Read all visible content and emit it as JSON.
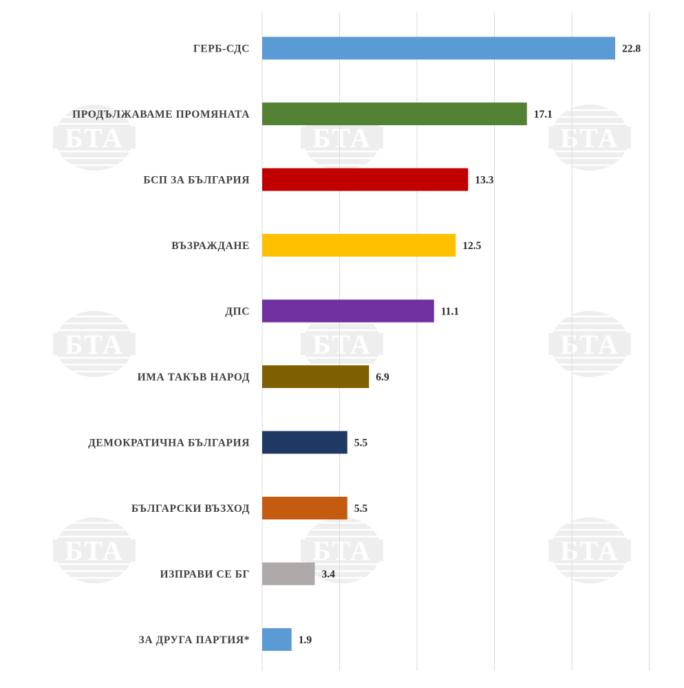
{
  "watermark": {
    "text": "БТА"
  },
  "chart_data": {
    "type": "bar",
    "orientation": "horizontal",
    "title": "",
    "xlabel": "",
    "ylabel": "",
    "xlim": [
      0,
      25
    ],
    "grid": true,
    "categories": [
      "ГЕРБ-СДС",
      "ПРОДЪЛЖАВАМЕ ПРОМЯНАТА",
      "БСП ЗА БЪЛГАРИЯ",
      "ВЪЗРАЖДАНЕ",
      "ДПС",
      "ИМА ТАКЪВ НАРОД",
      "ДЕМОКРАТИЧНА БЪЛГАРИЯ",
      "БЪЛГАРСКИ ВЪЗХОД",
      "ИЗПРАВИ СЕ БГ",
      "ЗА ДРУГА ПАРТИЯ*"
    ],
    "values": [
      22.8,
      17.1,
      13.3,
      12.5,
      11.1,
      6.9,
      5.5,
      5.5,
      3.4,
      1.9
    ],
    "value_labels": [
      "22.8",
      "17.1",
      "13.3",
      "12.5",
      "11.1",
      "6.9",
      "5.5",
      "5.5",
      "3.4",
      "1.9"
    ],
    "colors": [
      "#5b9bd5",
      "#548235",
      "#c00000",
      "#ffc000",
      "#7030a0",
      "#7f6000",
      "#203864",
      "#c55a11",
      "#aeaaaa",
      "#5b9bd5"
    ]
  }
}
